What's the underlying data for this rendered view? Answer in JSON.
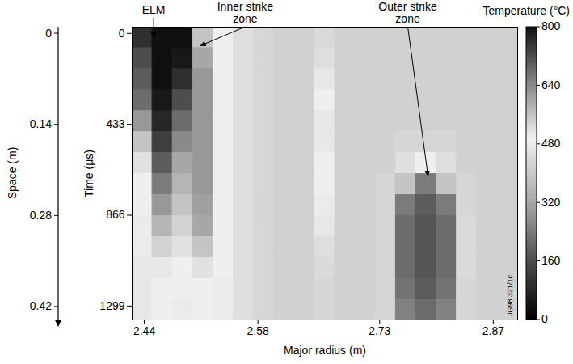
{
  "chart_data": {
    "type": "heatmap",
    "xlabel": "Major radius (m)",
    "ylabel": "Time (μs)",
    "xlim": [
      2.425,
      2.9
    ],
    "xticks": [
      2.44,
      2.58,
      2.73,
      2.87
    ],
    "ylim": [
      -30,
      1365
    ],
    "yticks": [
      0,
      433,
      866,
      1299
    ],
    "y2label": "Space (m)",
    "y2lim": [
      -0.01,
      0.44
    ],
    "y2ticks": [
      0,
      0.14,
      0.28,
      0.42
    ],
    "x_edges": [
      2.425,
      2.45,
      2.475,
      2.5,
      2.525,
      2.55,
      2.575,
      2.6,
      2.625,
      2.65,
      2.675,
      2.7,
      2.725,
      2.75,
      2.775,
      2.8,
      2.825,
      2.85,
      2.875,
      2.9
    ],
    "y_edges": [
      -30,
      70,
      170,
      270,
      370,
      470,
      570,
      670,
      770,
      870,
      970,
      1070,
      1170,
      1270,
      1365
    ],
    "cells": [
      [
        760,
        800,
        800,
        560,
        500,
        450,
        430,
        420,
        420,
        440,
        420,
        420,
        420,
        420,
        420,
        420,
        420,
        420,
        420
      ],
      [
        720,
        800,
        790,
        600,
        500,
        450,
        430,
        420,
        420,
        450,
        420,
        420,
        420,
        420,
        420,
        420,
        420,
        420,
        420
      ],
      [
        700,
        800,
        760,
        620,
        500,
        450,
        430,
        420,
        420,
        470,
        420,
        420,
        420,
        420,
        420,
        420,
        420,
        420,
        420
      ],
      [
        680,
        790,
        720,
        620,
        500,
        450,
        430,
        420,
        420,
        490,
        420,
        420,
        420,
        420,
        420,
        420,
        420,
        420,
        420
      ],
      [
        620,
        770,
        680,
        620,
        500,
        450,
        430,
        420,
        420,
        510,
        420,
        420,
        420,
        420,
        420,
        420,
        420,
        420,
        420
      ],
      [
        560,
        740,
        640,
        620,
        500,
        450,
        430,
        420,
        420,
        510,
        420,
        420,
        420,
        430,
        430,
        430,
        420,
        420,
        420
      ],
      [
        520,
        700,
        600,
        620,
        500,
        450,
        430,
        420,
        420,
        500,
        420,
        420,
        420,
        450,
        490,
        450,
        420,
        420,
        420
      ],
      [
        500,
        660,
        580,
        620,
        500,
        450,
        430,
        420,
        420,
        490,
        420,
        420,
        430,
        560,
        660,
        560,
        430,
        420,
        420
      ],
      [
        490,
        620,
        560,
        610,
        500,
        450,
        430,
        420,
        420,
        480,
        420,
        420,
        430,
        660,
        700,
        660,
        430,
        420,
        420
      ],
      [
        480,
        580,
        540,
        600,
        500,
        450,
        430,
        420,
        420,
        470,
        420,
        420,
        430,
        680,
        710,
        680,
        440,
        420,
        420
      ],
      [
        480,
        540,
        520,
        560,
        500,
        450,
        430,
        420,
        420,
        450,
        420,
        420,
        430,
        680,
        710,
        680,
        440,
        420,
        420
      ],
      [
        470,
        510,
        500,
        520,
        490,
        450,
        430,
        420,
        420,
        440,
        420,
        420,
        430,
        680,
        710,
        680,
        440,
        420,
        420
      ],
      [
        470,
        500,
        490,
        500,
        480,
        450,
        430,
        420,
        420,
        430,
        420,
        420,
        430,
        670,
        700,
        670,
        430,
        420,
        420
      ],
      [
        470,
        490,
        480,
        490,
        480,
        450,
        430,
        420,
        420,
        430,
        420,
        420,
        430,
        650,
        680,
        650,
        430,
        420,
        420
      ]
    ],
    "colorbar": {
      "label": "Temperature (°C)",
      "range": [
        0,
        800
      ],
      "ticks": [
        0,
        160,
        320,
        480,
        640,
        800
      ]
    },
    "annotations": [
      {
        "text": "ELM",
        "x": 2.452,
        "y": 20
      },
      {
        "text": "Inner strike zone",
        "x": 2.51,
        "y": 60
      },
      {
        "text": "Outer strike zone",
        "x": 2.79,
        "y": 680
      }
    ],
    "figure_id": "JG98.321/1c"
  }
}
